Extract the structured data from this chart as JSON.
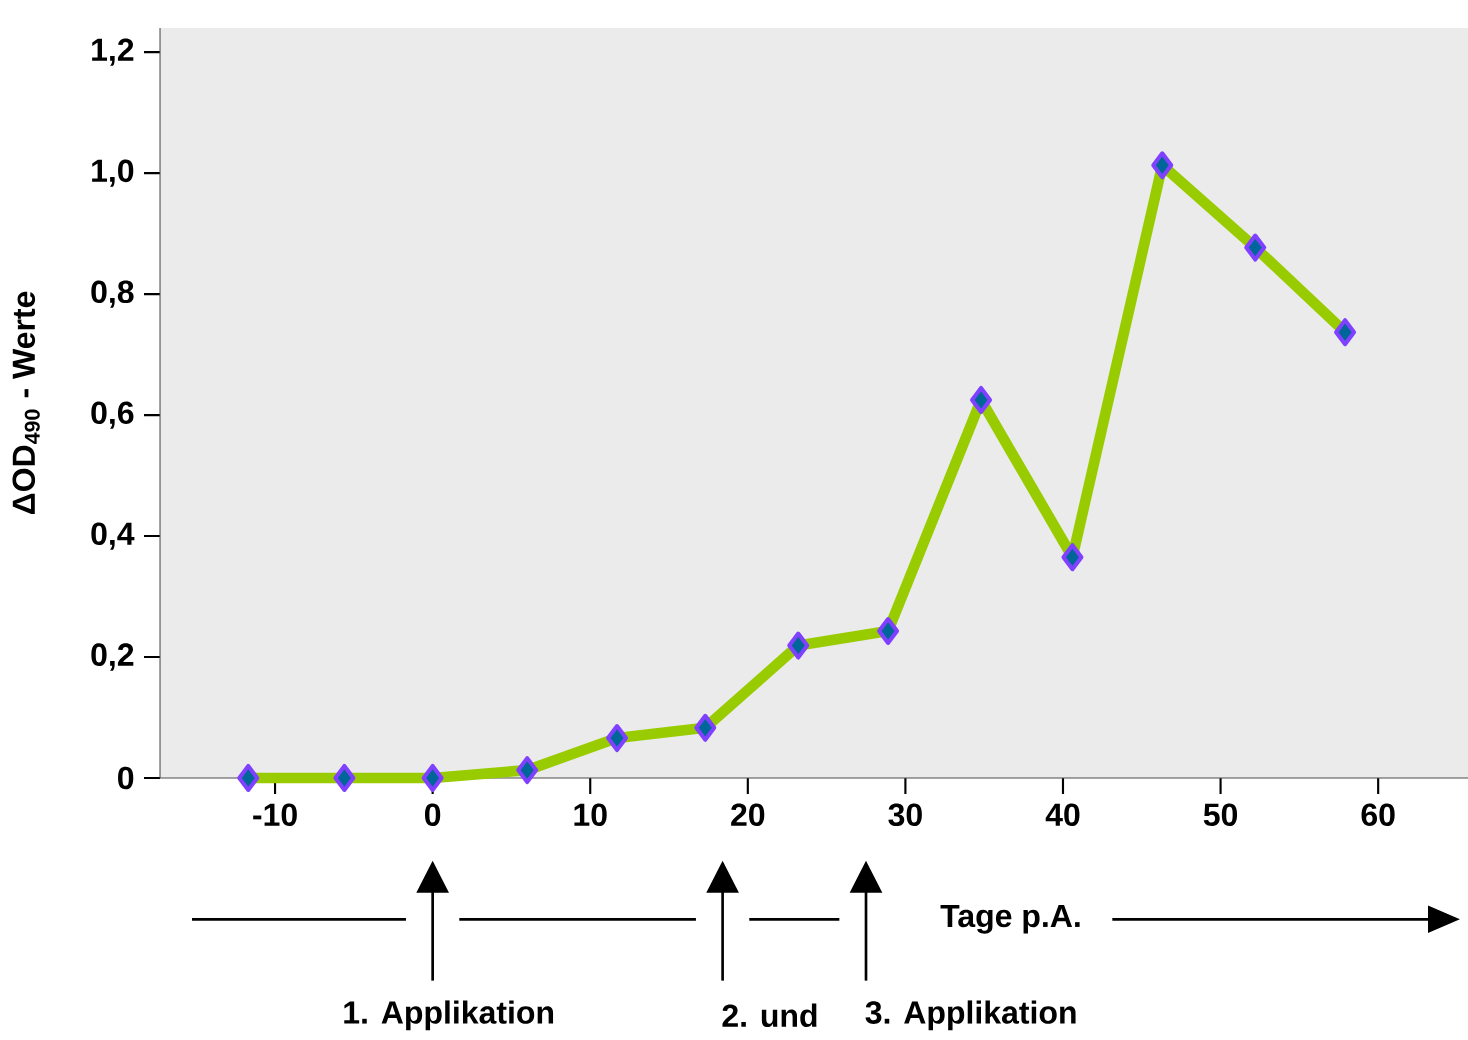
{
  "chart_data": {
    "type": "line",
    "ylabel": "ΔOD$_{490}$ - Werte",
    "xlabel": "Tage p.A.",
    "x": [
      -11.7,
      -5.6,
      0,
      6,
      11.7,
      17.3,
      23.2,
      28.9,
      34.8,
      40.6,
      46.3,
      52.2,
      57.9
    ],
    "series": [
      {
        "color": "#99cc00",
        "values": [
          0,
          0,
          0,
          0.013,
          0.066,
          0.083,
          0.219,
          0.243,
          0.625,
          0.365,
          1.013,
          0.877,
          0.737
        ]
      }
    ],
    "xlim": [
      -17.3,
      65.7
    ],
    "xticks": [
      -10,
      0,
      10,
      20,
      30,
      40,
      50,
      60
    ],
    "ylim": [
      0,
      1.24
    ],
    "yticks": [
      {
        "value": 0,
        "label": "0"
      },
      {
        "value": 0.2,
        "label": "0,2"
      },
      {
        "value": 0.4,
        "label": "0,4"
      },
      {
        "value": 0.6,
        "label": "0,6"
      },
      {
        "value": 0.8,
        "label": "0,8"
      },
      {
        "value": 1.0,
        "label": "1,0"
      },
      {
        "value": 1.2,
        "label": "1,2"
      }
    ],
    "marker": "diamond",
    "line_style": "solid",
    "grid": false,
    "annotations": [
      "1. Applikation",
      "2. und",
      "3. Applikation"
    ]
  }
}
